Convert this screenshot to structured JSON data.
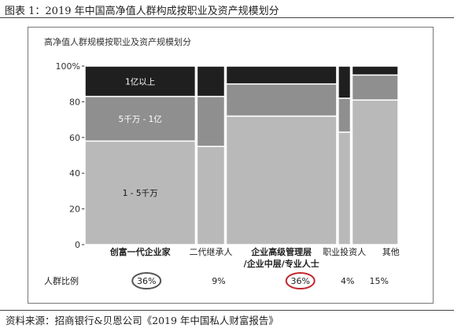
{
  "figure": {
    "title": "图表 1：2019 年中国高净值人群构成按职业及资产规模划分",
    "source": "资料来源：招商银行&贝恩公司《2019 年中国私人财富报告》"
  },
  "chart_data": {
    "type": "bar",
    "subtype": "marimekko",
    "title": "高净值人群规模按职业及资产规模划分",
    "ylabel": "",
    "xlabel": "",
    "ylim": [
      0,
      100
    ],
    "y_ticks": [
      "0",
      "20",
      "40",
      "60",
      "80",
      "100%"
    ],
    "categories": [
      "创富一代企业家",
      "二代继承人",
      "企业高级管理层/企业中层/专业人士",
      "职业投资人",
      "其他"
    ],
    "category_label_lines": [
      [
        "创富一代企业家"
      ],
      [
        "二代继承人"
      ],
      [
        "企业高级管理层",
        "/企业中层/专业人士"
      ],
      [
        "职业投资人"
      ],
      [
        "其他"
      ]
    ],
    "category_label_bold": [
      true,
      false,
      true,
      false,
      false
    ],
    "widths_percent": [
      36,
      9,
      36,
      4,
      15
    ],
    "width_labels": [
      "36%",
      "9%",
      "36%",
      "4%",
      "15%"
    ],
    "width_row_label": "人群比例",
    "highlighted": [
      0,
      2
    ],
    "highlight_colors": [
      "#555555",
      "#c0282d"
    ],
    "series": [
      {
        "name": "1 - 5千万",
        "color": "#b9b9b9",
        "values": [
          58,
          55,
          72,
          63,
          81
        ]
      },
      {
        "name": "5千万 - 1亿",
        "color": "#8f8f8f",
        "values": [
          25,
          28,
          18,
          19,
          14
        ]
      },
      {
        "name": "1亿以上",
        "color": "#1f1f1f",
        "values": [
          17,
          17,
          10,
          18,
          5
        ]
      }
    ],
    "segment_labels_in_first_column": [
      "1 - 5千万",
      "5千万 - 1亿",
      "1亿以上"
    ],
    "grid": false
  }
}
